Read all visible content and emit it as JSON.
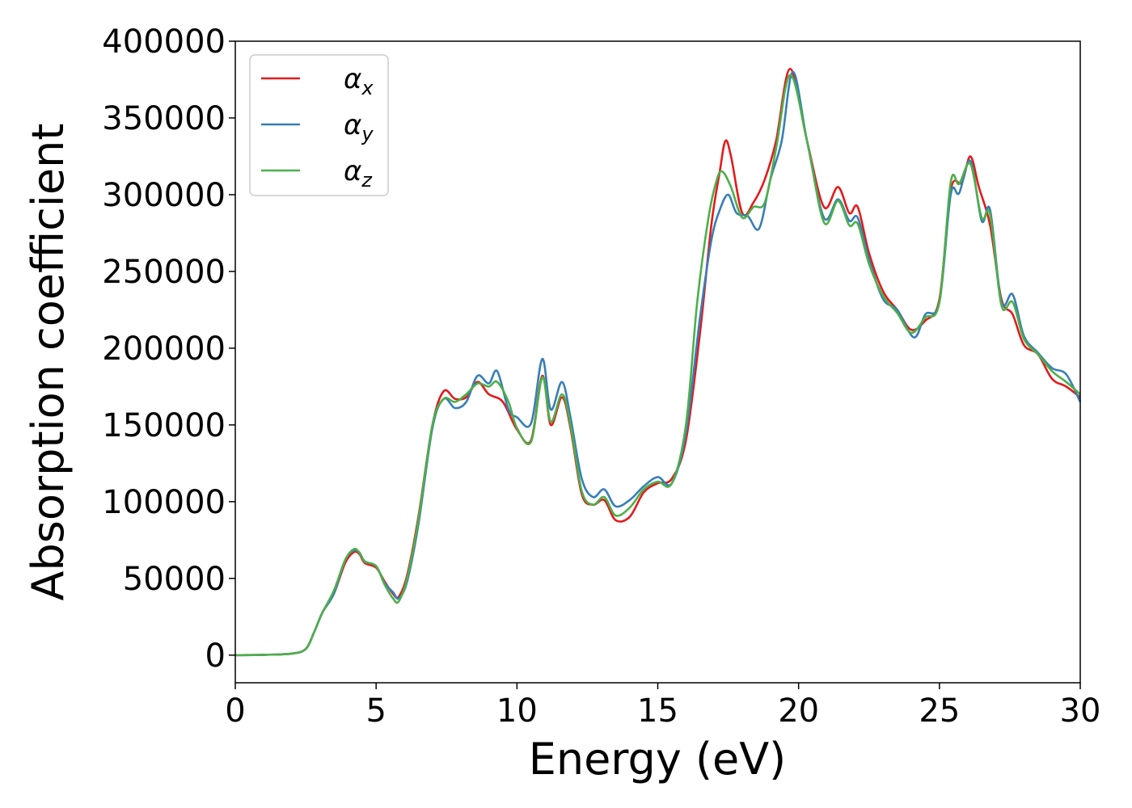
{
  "chart_data": {
    "type": "line",
    "xlabel": "Energy (eV)",
    "ylabel": "Absorption coefficient",
    "xlim": [
      0,
      30
    ],
    "ylim": [
      -18000,
      400000
    ],
    "xticks": [
      "0",
      "5",
      "10",
      "15",
      "20",
      "25",
      "30"
    ],
    "yticks": [
      "0",
      "50000",
      "100000",
      "150000",
      "200000",
      "250000",
      "300000",
      "350000",
      "400000"
    ],
    "grid": false,
    "legend_position": "top-left",
    "series": [
      {
        "name": "αx",
        "legend_base": "α",
        "legend_sub": "x",
        "color": "#e41a1c",
        "points": [
          [
            0,
            0
          ],
          [
            1,
            200
          ],
          [
            2,
            1000
          ],
          [
            2.5,
            4000
          ],
          [
            2.8,
            15000
          ],
          [
            3.1,
            28000
          ],
          [
            3.5,
            40000
          ],
          [
            3.9,
            60000
          ],
          [
            4.2,
            67000
          ],
          [
            4.4,
            66000
          ],
          [
            4.6,
            60000
          ],
          [
            5,
            57000
          ],
          [
            5.3,
            48000
          ],
          [
            5.6,
            40000
          ],
          [
            5.8,
            38000
          ],
          [
            6.1,
            52000
          ],
          [
            6.5,
            90000
          ],
          [
            7,
            150000
          ],
          [
            7.4,
            172000
          ],
          [
            7.8,
            167000
          ],
          [
            8.2,
            168000
          ],
          [
            8.6,
            178000
          ],
          [
            9,
            170000
          ],
          [
            9.5,
            165000
          ],
          [
            10,
            147000
          ],
          [
            10.5,
            140000
          ],
          [
            10.9,
            182000
          ],
          [
            11.2,
            150000
          ],
          [
            11.6,
            168000
          ],
          [
            11.9,
            148000
          ],
          [
            12.3,
            105000
          ],
          [
            12.7,
            98000
          ],
          [
            13.1,
            101000
          ],
          [
            13.5,
            88000
          ],
          [
            14,
            90000
          ],
          [
            14.5,
            106000
          ],
          [
            15,
            112000
          ],
          [
            15.5,
            115000
          ],
          [
            16,
            140000
          ],
          [
            16.5,
            210000
          ],
          [
            16.9,
            280000
          ],
          [
            17.2,
            315000
          ],
          [
            17.4,
            335000
          ],
          [
            17.6,
            325000
          ],
          [
            18,
            288000
          ],
          [
            18.4,
            295000
          ],
          [
            18.8,
            310000
          ],
          [
            19.2,
            335000
          ],
          [
            19.7,
            382000
          ],
          [
            20.3,
            335000
          ],
          [
            20.9,
            292000
          ],
          [
            21.4,
            305000
          ],
          [
            21.8,
            288000
          ],
          [
            22.1,
            292000
          ],
          [
            22.5,
            262000
          ],
          [
            23,
            237000
          ],
          [
            23.5,
            225000
          ],
          [
            24,
            212000
          ],
          [
            24.5,
            218000
          ],
          [
            25,
            232000
          ],
          [
            25.4,
            303000
          ],
          [
            25.8,
            308000
          ],
          [
            26.1,
            325000
          ],
          [
            26.4,
            305000
          ],
          [
            26.8,
            280000
          ],
          [
            27.2,
            232000
          ],
          [
            27.6,
            222000
          ],
          [
            28,
            202000
          ],
          [
            28.5,
            196000
          ],
          [
            29,
            180000
          ],
          [
            29.5,
            175000
          ],
          [
            30,
            168000
          ]
        ]
      },
      {
        "name": "αy",
        "legend_base": "α",
        "legend_sub": "y",
        "color": "#377eb8",
        "points": [
          [
            0,
            0
          ],
          [
            1,
            200
          ],
          [
            2,
            1000
          ],
          [
            2.5,
            4000
          ],
          [
            2.8,
            15000
          ],
          [
            3.1,
            28000
          ],
          [
            3.5,
            40000
          ],
          [
            3.9,
            62000
          ],
          [
            4.2,
            68000
          ],
          [
            4.4,
            67000
          ],
          [
            4.6,
            61000
          ],
          [
            5,
            58000
          ],
          [
            5.3,
            47000
          ],
          [
            5.6,
            41000
          ],
          [
            5.8,
            37000
          ],
          [
            6.1,
            48000
          ],
          [
            6.5,
            85000
          ],
          [
            7,
            148000
          ],
          [
            7.4,
            167000
          ],
          [
            7.8,
            161000
          ],
          [
            8.2,
            165000
          ],
          [
            8.6,
            182000
          ],
          [
            9,
            177000
          ],
          [
            9.3,
            185000
          ],
          [
            9.7,
            160000
          ],
          [
            10,
            155000
          ],
          [
            10.5,
            151000
          ],
          [
            10.9,
            193000
          ],
          [
            11.2,
            160000
          ],
          [
            11.6,
            178000
          ],
          [
            11.9,
            155000
          ],
          [
            12.3,
            115000
          ],
          [
            12.7,
            103000
          ],
          [
            13.1,
            108000
          ],
          [
            13.5,
            97000
          ],
          [
            14,
            101000
          ],
          [
            14.5,
            110000
          ],
          [
            15,
            116000
          ],
          [
            15.5,
            112000
          ],
          [
            16,
            145000
          ],
          [
            16.5,
            220000
          ],
          [
            16.9,
            270000
          ],
          [
            17.2,
            290000
          ],
          [
            17.5,
            300000
          ],
          [
            17.8,
            288000
          ],
          [
            18.2,
            286000
          ],
          [
            18.6,
            278000
          ],
          [
            19,
            310000
          ],
          [
            19.4,
            335000
          ],
          [
            19.8,
            380000
          ],
          [
            20.3,
            335000
          ],
          [
            20.9,
            285000
          ],
          [
            21.4,
            297000
          ],
          [
            21.8,
            283000
          ],
          [
            22.1,
            285000
          ],
          [
            22.5,
            258000
          ],
          [
            23,
            232000
          ],
          [
            23.5,
            225000
          ],
          [
            24.1,
            207000
          ],
          [
            24.5,
            222000
          ],
          [
            25,
            230000
          ],
          [
            25.4,
            300000
          ],
          [
            25.7,
            301000
          ],
          [
            26.1,
            322000
          ],
          [
            26.5,
            283000
          ],
          [
            26.8,
            290000
          ],
          [
            27.2,
            230000
          ],
          [
            27.6,
            235000
          ],
          [
            28,
            208000
          ],
          [
            28.5,
            197000
          ],
          [
            29,
            187000
          ],
          [
            29.5,
            183000
          ],
          [
            30,
            165000
          ]
        ]
      },
      {
        "name": "αz",
        "legend_base": "α",
        "legend_sub": "z",
        "color": "#4daf4a",
        "points": [
          [
            0,
            0
          ],
          [
            1,
            200
          ],
          [
            2,
            1000
          ],
          [
            2.5,
            4000
          ],
          [
            2.8,
            15000
          ],
          [
            3.1,
            28000
          ],
          [
            3.5,
            42000
          ],
          [
            3.9,
            62000
          ],
          [
            4.2,
            69000
          ],
          [
            4.4,
            67000
          ],
          [
            4.6,
            61000
          ],
          [
            5,
            58000
          ],
          [
            5.3,
            46000
          ],
          [
            5.6,
            37000
          ],
          [
            5.8,
            35000
          ],
          [
            6.1,
            50000
          ],
          [
            6.5,
            88000
          ],
          [
            7,
            150000
          ],
          [
            7.4,
            167000
          ],
          [
            7.8,
            165000
          ],
          [
            8.2,
            170000
          ],
          [
            8.6,
            177000
          ],
          [
            9,
            175000
          ],
          [
            9.3,
            178000
          ],
          [
            9.7,
            165000
          ],
          [
            10,
            148000
          ],
          [
            10.5,
            139000
          ],
          [
            10.9,
            181000
          ],
          [
            11.2,
            152000
          ],
          [
            11.6,
            170000
          ],
          [
            11.9,
            150000
          ],
          [
            12.3,
            107000
          ],
          [
            12.7,
            98000
          ],
          [
            13.1,
            103000
          ],
          [
            13.5,
            91000
          ],
          [
            14,
            96000
          ],
          [
            14.5,
            108000
          ],
          [
            15,
            113000
          ],
          [
            15.5,
            112000
          ],
          [
            16,
            150000
          ],
          [
            16.4,
            230000
          ],
          [
            16.8,
            285000
          ],
          [
            17.1,
            310000
          ],
          [
            17.3,
            315000
          ],
          [
            17.6,
            305000
          ],
          [
            18,
            285000
          ],
          [
            18.4,
            292000
          ],
          [
            18.8,
            295000
          ],
          [
            19.2,
            330000
          ],
          [
            19.7,
            378000
          ],
          [
            20.3,
            335000
          ],
          [
            20.9,
            282000
          ],
          [
            21.4,
            296000
          ],
          [
            21.8,
            280000
          ],
          [
            22.1,
            281000
          ],
          [
            22.5,
            255000
          ],
          [
            23,
            234000
          ],
          [
            23.5,
            223000
          ],
          [
            24,
            210000
          ],
          [
            24.5,
            220000
          ],
          [
            25,
            230000
          ],
          [
            25.4,
            308000
          ],
          [
            25.7,
            307000
          ],
          [
            26.1,
            320000
          ],
          [
            26.5,
            285000
          ],
          [
            26.8,
            287000
          ],
          [
            27.2,
            228000
          ],
          [
            27.6,
            230000
          ],
          [
            28,
            206000
          ],
          [
            28.5,
            196000
          ],
          [
            29,
            185000
          ],
          [
            29.5,
            178000
          ],
          [
            30,
            170000
          ]
        ]
      }
    ]
  }
}
